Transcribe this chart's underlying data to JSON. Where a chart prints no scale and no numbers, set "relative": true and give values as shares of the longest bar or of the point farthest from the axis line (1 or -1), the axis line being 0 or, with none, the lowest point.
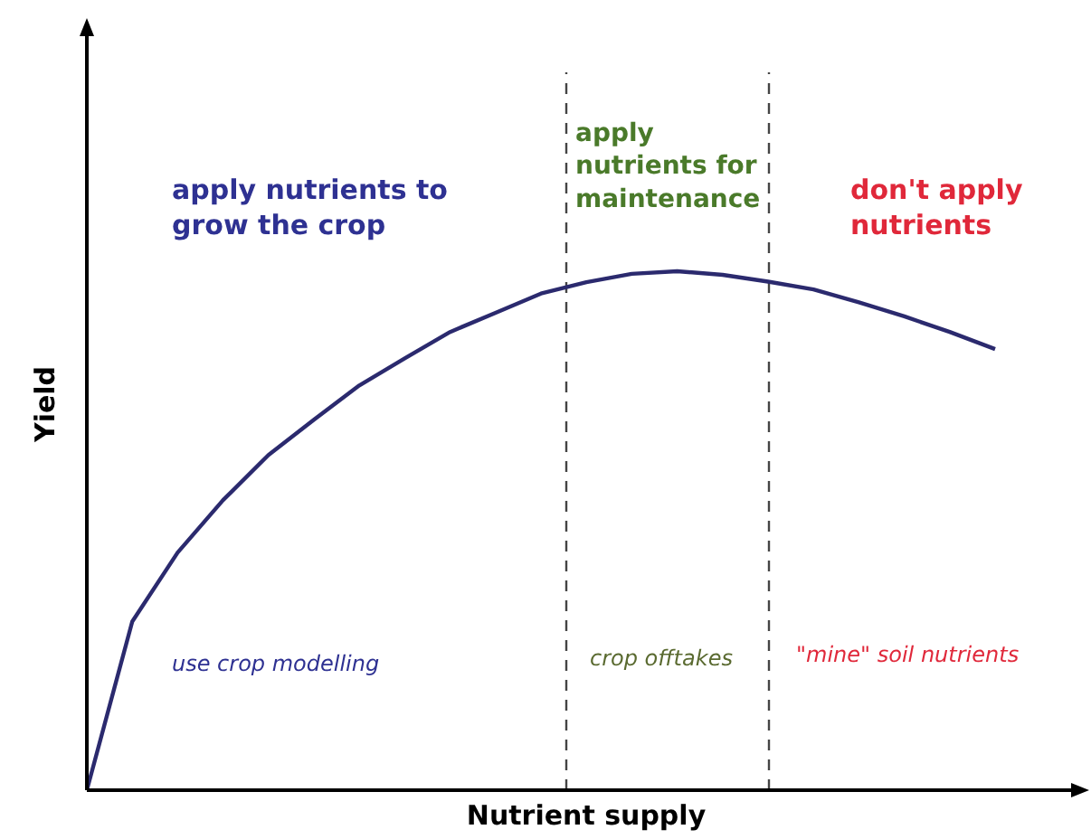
{
  "chart_data": {
    "type": "line",
    "relative": true,
    "xlabel": "Nutrient supply",
    "ylabel": "Yield",
    "marker": "none",
    "line_style": "solid",
    "categories": [
      null,
      null,
      null,
      null,
      null,
      null,
      null,
      null,
      null,
      null,
      null,
      null,
      null,
      null,
      null,
      null,
      null,
      null,
      null,
      null,
      null
    ],
    "series": [
      {
        "color": "#2b2a6e",
        "values": [
          0,
          0.325,
          0.458,
          0.559,
          0.646,
          0.714,
          0.78,
          0.832,
          0.883,
          0.92,
          0.957,
          0.979,
          0.995,
          1,
          0.993,
          0.98,
          0.965,
          0.94,
          0.913,
          0.883,
          0.85
        ]
      }
    ],
    "annotations": [
      "apply nutrients to grow the crop",
      "apply nutrients for maintenance",
      "don't apply nutrients",
      "use crop modelling",
      "crop offtakes",
      "\"mine\" soil nutrients"
    ]
  }
}
